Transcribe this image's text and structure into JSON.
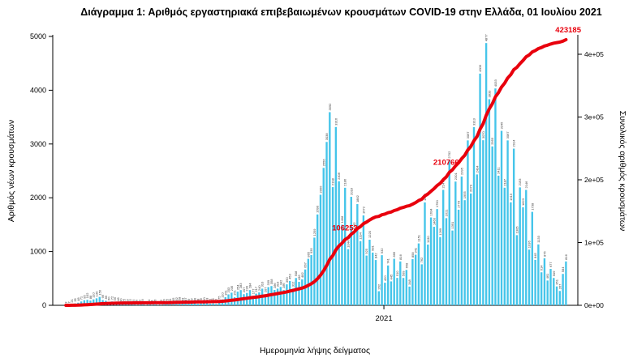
{
  "title": "Διάγραμμα 1: Αριθμός εργαστηριακά επιβεβαιωμένων κρουσμάτων COVID-19 στην Ελλάδα, 01 Ιουλίου 2021",
  "axes": {
    "left_label": "Αριθμός νέων κρουσμάτων",
    "right_label": "Συνολικός αριθμός κρουσμάτων",
    "bottom_label": "Ημερομηνία λήψης δείγματος",
    "x_tick_label": "2021"
  },
  "chart_data": {
    "type": "bar",
    "combo": "bar+line",
    "title": "Διάγραμμα 1: Αριθμός εργαστηριακά επιβεβαιωμένων κρουσμάτων COVID-19 στην Ελλάδα, 01 Ιουλίου 2021",
    "xlabel": "Ημερομηνία λήψης δείγματος",
    "ylabel_left": "Αριθμός νέων κρουσμάτων",
    "ylabel_right": "Συνολικός αριθμός κρουσμάτων",
    "x_start_date": "2020-02-26",
    "x_step_days": 3,
    "x_tick_labels": [
      "2021"
    ],
    "x_tick_dates": [
      "2021-01-01"
    ],
    "ylim_left": [
      0,
      5000
    ],
    "yticks_left": [
      0,
      1000,
      2000,
      3000,
      4000,
      5000
    ],
    "yticks_right_labels": [
      "0e+00",
      "1e+05",
      "2e+05",
      "3e+05",
      "4e+05"
    ],
    "yticks_right_values": [
      0,
      100000,
      200000,
      300000,
      400000
    ],
    "grid": false,
    "legend": "none",
    "bar_value_labels": true,
    "series": [
      {
        "name": "daily_new_cases",
        "type": "bar",
        "color": "#45c5ea",
        "values": [
          3,
          7,
          21,
          35,
          48,
          71,
          95,
          102,
          88,
          110,
          130,
          156,
          99,
          85,
          60,
          72,
          55,
          48,
          30,
          25,
          18,
          22,
          15,
          10,
          12,
          19,
          8,
          14,
          11,
          16,
          9,
          12,
          20,
          25,
          31,
          45,
          52,
          58,
          43,
          47,
          29,
          33,
          40,
          28,
          36,
          50,
          43,
          31,
          35,
          27,
          75,
          110,
          151,
          203,
          235,
          151,
          254,
          283,
          207,
          230,
          284,
          177,
          217,
          240,
          310,
          207,
          339,
          358,
          286,
          310,
          342,
          286,
          390,
          453,
          312,
          508,
          436,
          482,
          667,
          865,
          935,
          1259,
          1690,
          2056,
          2556,
          3038,
          3592,
          2198,
          3316,
          2306,
          1498,
          2186,
          1044,
          2018,
          1382,
          1882,
          1194,
          1672,
          925,
          1220,
          981,
          842,
          262,
          932,
          420,
          741,
          445,
          866,
          510,
          816,
          509,
          658,
          348,
          858,
          941,
          1151,
          762,
          1913,
          1130,
          1634,
          1460,
          1790,
          1269,
          2147,
          1621,
          2702,
          1391,
          2301,
          1778,
          2395,
          1955,
          3067,
          2079,
          3313,
          2434,
          4309,
          3070,
          4877,
          3833,
          2955,
          4033,
          2411,
          3245,
          2187,
          3067,
          1915,
          2914,
          1305,
          2193,
          1823,
          2146,
          1036,
          1738,
          845,
          1133,
          614,
          875,
          461,
          677,
          509,
          351,
          267,
          584,
          816
        ]
      },
      {
        "name": "cumulative_cases",
        "type": "line",
        "color": "#e8000d",
        "total_final": 423185,
        "annotations": [
          {
            "value": 106253,
            "label": "106253"
          },
          {
            "value": 210766,
            "label": "210766"
          },
          {
            "value": 423185,
            "label": "423185"
          }
        ]
      }
    ]
  },
  "colors": {
    "bar": "#45c5ea",
    "line": "#e8000d",
    "annotation": "#e8000d",
    "axis": "#000000",
    "bar_label": "#3c3c3c"
  }
}
